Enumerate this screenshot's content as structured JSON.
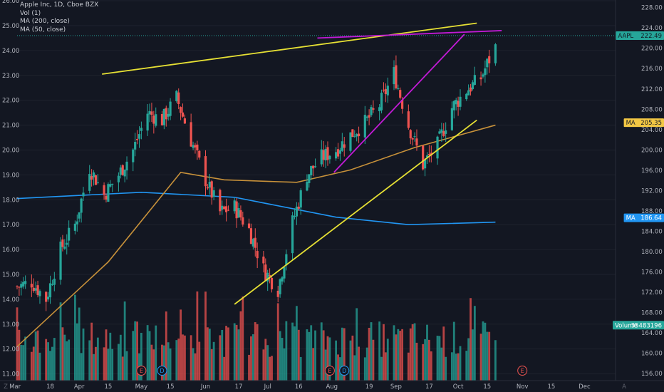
{
  "chart_data": {
    "type": "candlestick",
    "legend": {
      "symbol_line": "Apple Inc, 1D, Cboe BZX",
      "volume_line": "Vol (1)",
      "ma200_line": "MA (200, close)",
      "ma50_line": "MA (50, close)"
    },
    "x_axis": {
      "ticks": [
        "Mar",
        "18",
        "Apr",
        "15",
        "May",
        "15",
        "Jun",
        "17",
        "Jul",
        "16",
        "Aug",
        "19",
        "Sep",
        "17",
        "Oct",
        "15",
        "Nov",
        "15",
        "Dec"
      ],
      "range": [
        "2020-03-02",
        "2020-12-16"
      ]
    },
    "left_axis": {
      "ticks": [
        "11.00",
        "12.00",
        "13.00",
        "14.00",
        "15.00",
        "16.00",
        "17.00",
        "18.00",
        "19.00",
        "20.00",
        "21.00",
        "22.00",
        "23.00",
        "24.00",
        "25.00",
        "26.00"
      ],
      "range": [
        10.73,
        26.03
      ]
    },
    "right_axis": {
      "ticks": [
        "156.00",
        "160.00",
        "164.00",
        "168.00",
        "172.00",
        "176.00",
        "180.00",
        "184.00",
        "188.00",
        "192.00",
        "196.00",
        "200.00",
        "204.00",
        "208.00",
        "212.00",
        "216.00",
        "220.00",
        "224.00",
        "228.00"
      ],
      "range": [
        154.6,
        229.5
      ]
    },
    "price_badges": [
      {
        "label": "AAPL",
        "value": "222.49",
        "color": "#26a69a",
        "text_color": "#131722",
        "at": 222.49
      },
      {
        "label": "MA",
        "value": "205.35",
        "color": "#f2c744",
        "text_color": "#131722",
        "at": 205.35
      },
      {
        "label": "MA",
        "value": "186.64",
        "color": "#2196f3",
        "text_color": "#ffffff",
        "at": 186.64
      },
      {
        "label": "Volume",
        "value": "35483196",
        "color": "#26a69a",
        "text_color": "#ffffff",
        "at": 165.5
      }
    ],
    "series": {
      "price": {
        "type": "candlestick",
        "points": [
          {
            "date": "2020-03-02",
            "c": 14.5
          },
          {
            "date": "2020-03-09",
            "c": 14.7
          },
          {
            "date": "2020-03-16",
            "c": 14.0
          },
          {
            "date": "2020-03-23",
            "c": 16.0
          },
          {
            "date": "2020-03-30",
            "c": 17.0
          },
          {
            "date": "2020-04-06",
            "c": 19.3
          },
          {
            "date": "2020-04-13",
            "c": 18.2
          },
          {
            "date": "2020-04-20",
            "c": 19.0
          },
          {
            "date": "2020-04-27",
            "c": 20.0
          },
          {
            "date": "2020-05-04",
            "c": 21.5
          },
          {
            "date": "2020-05-11",
            "c": 21.2
          },
          {
            "date": "2020-05-18",
            "c": 22.1
          },
          {
            "date": "2020-05-25",
            "c": 20.4
          },
          {
            "date": "2020-06-01",
            "c": 18.8
          },
          {
            "date": "2020-06-08",
            "c": 17.5
          },
          {
            "date": "2020-06-15",
            "c": 17.7
          },
          {
            "date": "2020-06-22",
            "c": 16.8
          },
          {
            "date": "2020-06-29",
            "c": 15.2
          },
          {
            "date": "2020-07-06",
            "c": 14.4
          },
          {
            "date": "2020-07-13",
            "c": 17.1
          },
          {
            "date": "2020-07-20",
            "c": 19.0
          },
          {
            "date": "2020-07-27",
            "c": 19.7
          },
          {
            "date": "2020-08-03",
            "c": 20.0
          },
          {
            "date": "2020-08-10",
            "c": 20.6
          },
          {
            "date": "2020-08-17",
            "c": 21.1
          },
          {
            "date": "2020-08-24",
            "c": 21.8
          },
          {
            "date": "2020-08-31",
            "c": 23.1
          },
          {
            "date": "2020-09-07",
            "c": 21.0
          },
          {
            "date": "2020-09-14",
            "c": 19.4
          },
          {
            "date": "2020-09-21",
            "c": 20.2
          },
          {
            "date": "2020-09-28",
            "c": 21.7
          },
          {
            "date": "2020-10-05",
            "c": 22.4
          },
          {
            "date": "2020-10-12",
            "c": 22.9
          },
          {
            "date": "2020-10-19",
            "c": 24.2
          }
        ]
      },
      "ma_200": {
        "color": "#2196f3",
        "points": [
          {
            "date": "2020-03-02",
            "v": 18.05
          },
          {
            "date": "2020-05-01",
            "v": 18.3
          },
          {
            "date": "2020-06-15",
            "v": 18.1
          },
          {
            "date": "2020-08-03",
            "v": 17.3
          },
          {
            "date": "2020-09-07",
            "v": 17.0
          },
          {
            "date": "2020-10-19",
            "v": 17.1
          }
        ]
      },
      "ma_50": {
        "color": "#c7913a",
        "points": [
          {
            "date": "2020-03-02",
            "v": 12.1
          },
          {
            "date": "2020-04-15",
            "v": 15.5
          },
          {
            "date": "2020-05-20",
            "v": 19.1
          },
          {
            "date": "2020-06-10",
            "v": 18.8
          },
          {
            "date": "2020-07-15",
            "v": 18.7
          },
          {
            "date": "2020-08-10",
            "v": 19.2
          },
          {
            "date": "2020-09-10",
            "v": 20.1
          },
          {
            "date": "2020-10-19",
            "v": 21.0
          }
        ]
      },
      "volume": {
        "up_color": "#26a69a",
        "down_color": "#ef5350"
      }
    },
    "trendlines": [
      {
        "color": "#e6e034",
        "from": {
          "date": "2020-04-12",
          "price": 23.05
        },
        "to": {
          "date": "2020-10-10",
          "price": 25.1
        }
      },
      {
        "color": "#e6e034",
        "from": {
          "date": "2020-06-15",
          "price": 13.8
        },
        "to": {
          "date": "2020-10-10",
          "price": 21.2
        }
      },
      {
        "color": "#c21ad6",
        "from": {
          "date": "2020-07-25",
          "price": 24.5
        },
        "to": {
          "date": "2020-10-22",
          "price": 24.8
        }
      },
      {
        "color": "#c21ad6",
        "from": {
          "date": "2020-08-02",
          "price": 19.1
        },
        "to": {
          "date": "2020-10-04",
          "price": 24.65
        }
      }
    ],
    "horizontal_line": {
      "price": 222.49,
      "color": "#26a69a"
    },
    "event_markers": [
      {
        "label": "E",
        "date": "2020-05-01",
        "color": "#ef5350"
      },
      {
        "label": "D",
        "date": "2020-05-11",
        "color": "#2196f3"
      },
      {
        "label": "E",
        "date": "2020-07-31",
        "color": "#ef5350"
      },
      {
        "label": "D",
        "date": "2020-08-07",
        "color": "#2196f3"
      },
      {
        "label": "E",
        "date": "2020-11-01",
        "color": "#ef5350"
      }
    ],
    "corner_glyphs": {
      "left": "Z",
      "right": "A"
    },
    "colors": {
      "background": "#131722",
      "grid": "#1e222d",
      "axis_text": "#b2b5be",
      "up": "#26a69a",
      "down": "#ef5350"
    }
  }
}
